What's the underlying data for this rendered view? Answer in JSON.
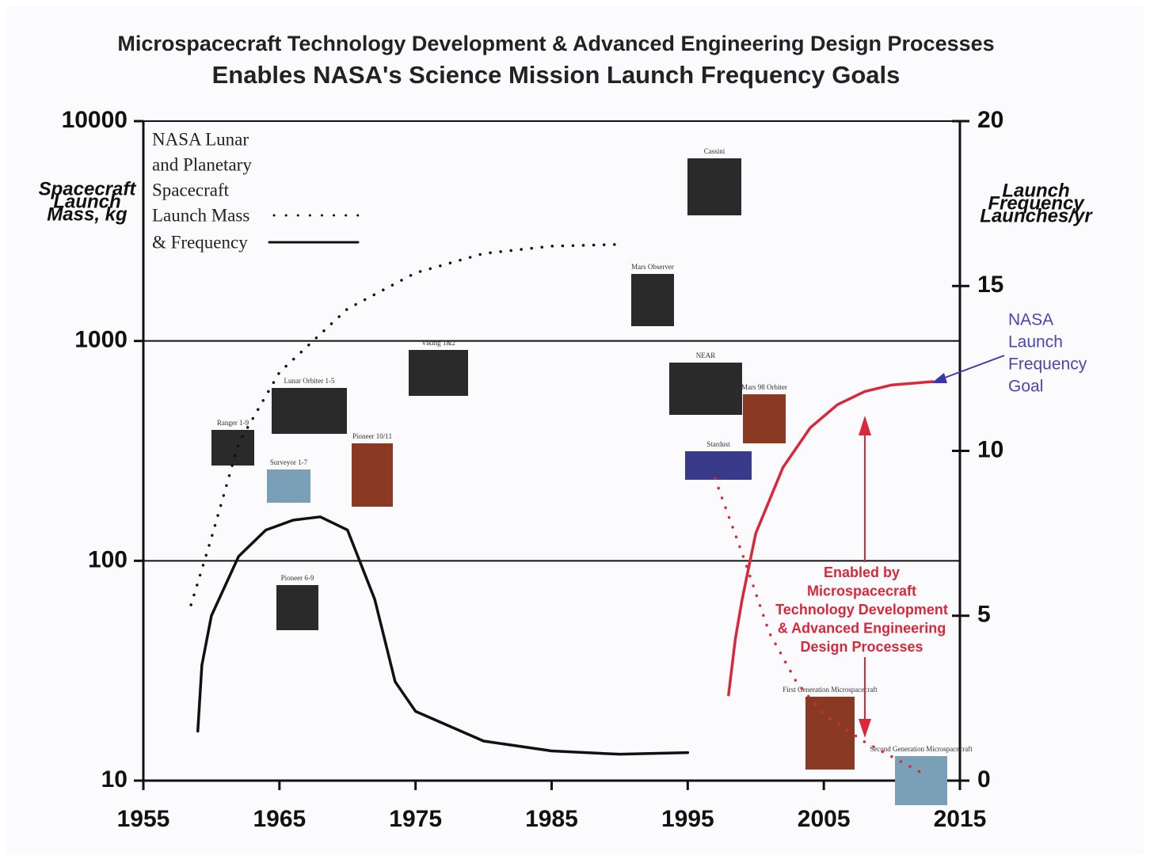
{
  "chart_data": {
    "type": "line",
    "title": "Microspacecraft Technology Development & Advanced Engineering Design Processes",
    "subtitle": "Enables NASA's Science Mission Launch Frequency Goals",
    "ylabel": [
      "Spacecraft",
      "Launch",
      "Mass, kg"
    ],
    "y2label": [
      "Launch",
      "Frequency",
      "Launches/yr"
    ],
    "xlim": [
      1955,
      2015
    ],
    "xticks": [
      1955,
      1965,
      1975,
      1985,
      1995,
      2005,
      2015
    ],
    "ylim": [
      10,
      10000
    ],
    "yticks": [
      10,
      100,
      1000,
      10000
    ],
    "ylog": true,
    "y2lim": [
      0,
      20
    ],
    "y2ticks": [
      0,
      5,
      10,
      15,
      20
    ],
    "grid": true,
    "legend_title": [
      "NASA Lunar",
      "and Planetary",
      "Spacecraft"
    ],
    "series": [
      {
        "name": "Launch Mass",
        "color": "#111111",
        "style": "dotted",
        "x": [
          1958.5,
          1960,
          1962,
          1965,
          1970,
          1975,
          1980,
          1985,
          1990
        ],
        "values": [
          63,
          127,
          343,
          720,
          1400,
          2040,
          2500,
          2700,
          2750
        ]
      },
      {
        "name": "& Frequency",
        "color": "#111111",
        "style": "solid",
        "axis": "y2",
        "x": [
          1959,
          1959.3,
          1960,
          1962,
          1964,
          1966,
          1968,
          1970,
          1972,
          1973.5,
          1975,
          1980,
          1985,
          1990,
          1995
        ],
        "values": [
          1.5,
          3.5,
          5,
          6.8,
          7.6,
          7.9,
          8.0,
          7.6,
          5.5,
          3.0,
          2.1,
          1.2,
          0.9,
          0.8,
          0.85
        ]
      },
      {
        "color": "#d8283a",
        "style": "dotted",
        "x": [
          1997,
          1999,
          2001,
          2003,
          2005,
          2008,
          2012
        ],
        "values": [
          237,
          108,
          47,
          28,
          20,
          15,
          11
        ]
      },
      {
        "color": "#d8283a",
        "style": "solid",
        "axis": "y2",
        "x": [
          1998,
          1998.5,
          1999,
          2000,
          2002,
          2004,
          2006,
          2008,
          2010,
          2013
        ],
        "values": [
          2.6,
          4.3,
          5.5,
          7.5,
          9.5,
          10.7,
          11.4,
          11.8,
          12.0,
          12.1
        ]
      }
    ],
    "annotations": {
      "goal": [
        "NASA",
        "Launch",
        "Frequency",
        "Goal"
      ],
      "enabled": [
        "Enabled by",
        "Microspacecraft",
        "Technology Development",
        "&  Advanced Engineering",
        "Design Processes"
      ]
    },
    "spacecraft": [
      "Cassini",
      "Mars Observer",
      "NEAR",
      "Mars 98 Orbiter",
      "Stardust",
      "Viking 1&2",
      "Lunar Orbiter 1-5",
      "Ranger 1-9",
      "Surveyor 1-7",
      "Pioneer 10/11",
      "Pioneer 6-9",
      "First Generation Microspacecraft",
      "Second Generation Microspacecraft"
    ]
  }
}
